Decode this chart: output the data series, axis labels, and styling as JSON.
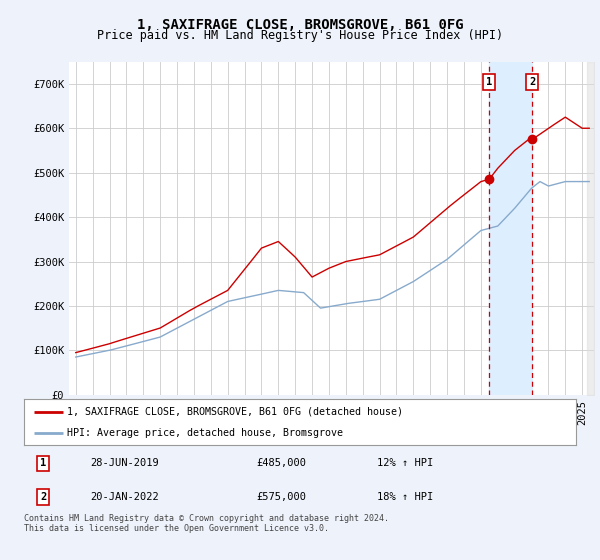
{
  "title": "1, SAXIFRAGE CLOSE, BROMSGROVE, B61 0FG",
  "subtitle": "Price paid vs. HM Land Registry's House Price Index (HPI)",
  "ylim": [
    0,
    750000
  ],
  "yticks": [
    0,
    100000,
    200000,
    300000,
    400000,
    500000,
    600000,
    700000
  ],
  "ytick_labels": [
    "£0",
    "£100K",
    "£200K",
    "£300K",
    "£400K",
    "£500K",
    "£600K",
    "£700K"
  ],
  "line1_color": "#cc0000",
  "line2_color": "#88aacc",
  "marker1_label": "1",
  "marker2_label": "2",
  "sale1_year": 2019.49,
  "sale1_price": 485000,
  "sale2_year": 2022.05,
  "sale2_price": 575000,
  "legend_line1": "1, SAXIFRAGE CLOSE, BROMSGROVE, B61 0FG (detached house)",
  "legend_line2": "HPI: Average price, detached house, Bromsgrove",
  "footnote": "Contains HM Land Registry data © Crown copyright and database right 2024.\nThis data is licensed under the Open Government Licence v3.0.",
  "background_color": "#eef2fa",
  "plot_bg_color": "#ffffff",
  "grid_color": "#cccccc",
  "shade_color": "#ddeeff",
  "title_fontsize": 10,
  "subtitle_fontsize": 8.5,
  "tick_fontsize": 7.5
}
